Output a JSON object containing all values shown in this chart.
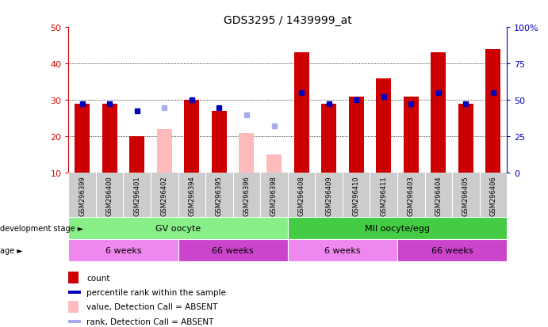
{
  "title": "GDS3295 / 1439999_at",
  "samples": [
    "GSM296399",
    "GSM296400",
    "GSM296401",
    "GSM296402",
    "GSM296394",
    "GSM296395",
    "GSM296396",
    "GSM296398",
    "GSM296408",
    "GSM296409",
    "GSM296410",
    "GSM296411",
    "GSM296403",
    "GSM296404",
    "GSM296405",
    "GSM296406"
  ],
  "count": [
    29,
    29,
    20,
    null,
    30,
    27,
    null,
    null,
    43,
    29,
    31,
    36,
    31,
    43,
    29,
    44
  ],
  "count_absent": [
    null,
    null,
    null,
    22,
    null,
    null,
    21,
    15,
    null,
    null,
    null,
    null,
    null,
    null,
    null,
    null
  ],
  "rank": [
    29,
    29,
    27,
    null,
    30,
    28,
    null,
    null,
    32,
    29,
    30,
    31,
    29,
    32,
    29,
    32
  ],
  "rank_absent": [
    null,
    null,
    null,
    28,
    null,
    null,
    26,
    23,
    null,
    null,
    null,
    null,
    null,
    null,
    null,
    null
  ],
  "absent": [
    false,
    false,
    false,
    true,
    false,
    false,
    true,
    true,
    false,
    false,
    false,
    false,
    false,
    false,
    false,
    false
  ],
  "ylim_left": [
    10,
    50
  ],
  "ylim_right": [
    0,
    100
  ],
  "yticks_left": [
    10,
    20,
    30,
    40,
    50
  ],
  "yticks_right": [
    0,
    25,
    50,
    75,
    100
  ],
  "yticklabels_right": [
    "0",
    "25",
    "50",
    "75",
    "100%"
  ],
  "bar_color_present": "#cc0000",
  "bar_color_absent": "#ffbbbb",
  "rank_color_present": "#0000bb",
  "rank_color_absent": "#aaaaee",
  "bg_color": "#cccccc",
  "plot_bg": "#ffffff",
  "dev_stage_groups": [
    {
      "label": "GV oocyte",
      "start": 0,
      "end": 8,
      "color": "#88ee88"
    },
    {
      "label": "MII oocyte/egg",
      "start": 8,
      "end": 16,
      "color": "#44cc44"
    }
  ],
  "age_groups": [
    {
      "label": "6 weeks",
      "start": 0,
      "end": 4,
      "color": "#ee88ee"
    },
    {
      "label": "66 weeks",
      "start": 4,
      "end": 8,
      "color": "#cc44cc"
    },
    {
      "label": "6 weeks",
      "start": 8,
      "end": 12,
      "color": "#ee88ee"
    },
    {
      "label": "66 weeks",
      "start": 12,
      "end": 16,
      "color": "#cc44cc"
    }
  ],
  "legend_items": [
    {
      "label": "count",
      "color": "#cc0000",
      "shape": "rect"
    },
    {
      "label": "percentile rank within the sample",
      "color": "#0000bb",
      "shape": "sq"
    },
    {
      "label": "value, Detection Call = ABSENT",
      "color": "#ffbbbb",
      "shape": "rect"
    },
    {
      "label": "rank, Detection Call = ABSENT",
      "color": "#aaaaee",
      "shape": "sq"
    }
  ],
  "left_tick_color": "#cc0000",
  "right_tick_color": "#0000bb"
}
